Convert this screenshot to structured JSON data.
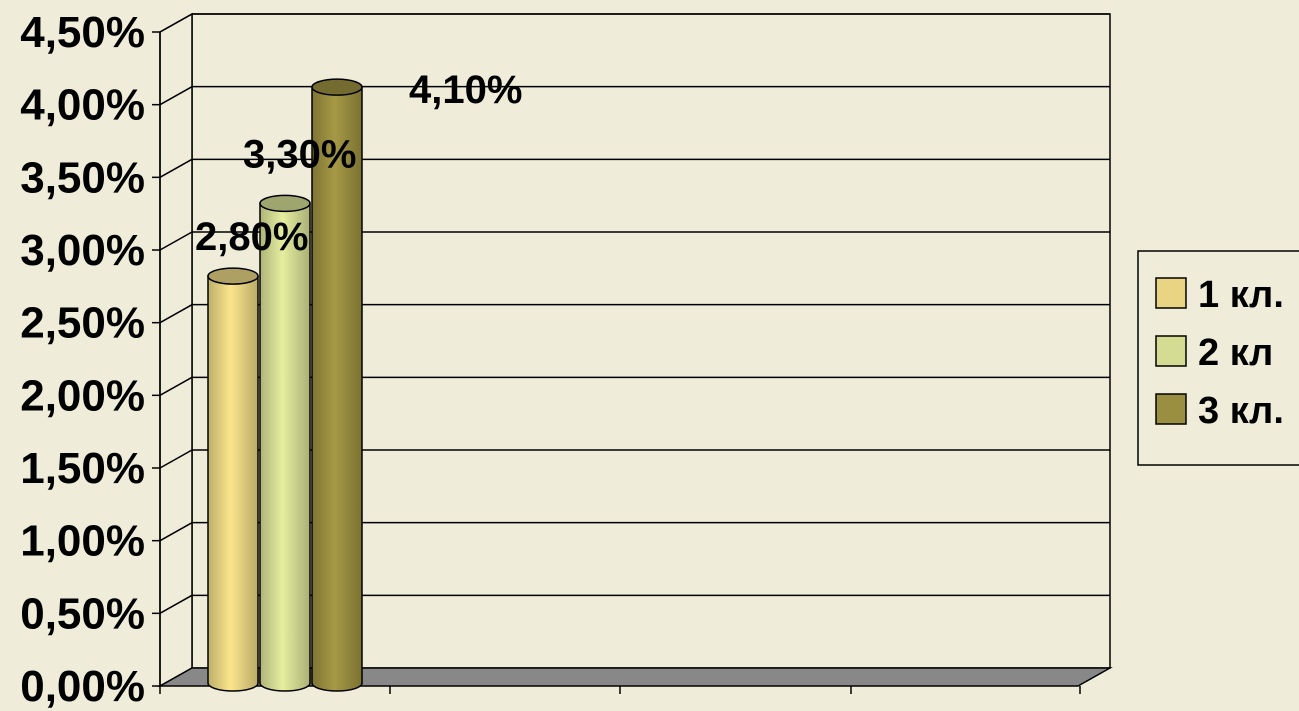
{
  "chart_data": {
    "type": "bar",
    "title": "",
    "xlabel": "",
    "ylabel": "",
    "ylim": [
      0,
      4.5
    ],
    "y_tick_values": [
      0,
      0.5,
      1.0,
      1.5,
      2.0,
      2.5,
      3.0,
      3.5,
      4.0,
      4.5
    ],
    "y_tick_labels": [
      "0,00%",
      "0,50%",
      "1,00%",
      "1,50%",
      "2,00%",
      "2,50%",
      "3,00%",
      "3,50%",
      "4,00%",
      "4,50%"
    ],
    "grid": true,
    "legend_position": "right",
    "categories": [
      ""
    ],
    "series": [
      {
        "name": "1 кл.",
        "values": [
          2.8
        ],
        "label": "2,80%",
        "color": "#e8d482"
      },
      {
        "name": "2 кл",
        "values": [
          3.3
        ],
        "label": "3,30%",
        "color": "#d4dc94"
      },
      {
        "name": "3 кл.",
        "values": [
          4.1
        ],
        "label": "4,10%",
        "color": "#9a8e40"
      }
    ]
  }
}
